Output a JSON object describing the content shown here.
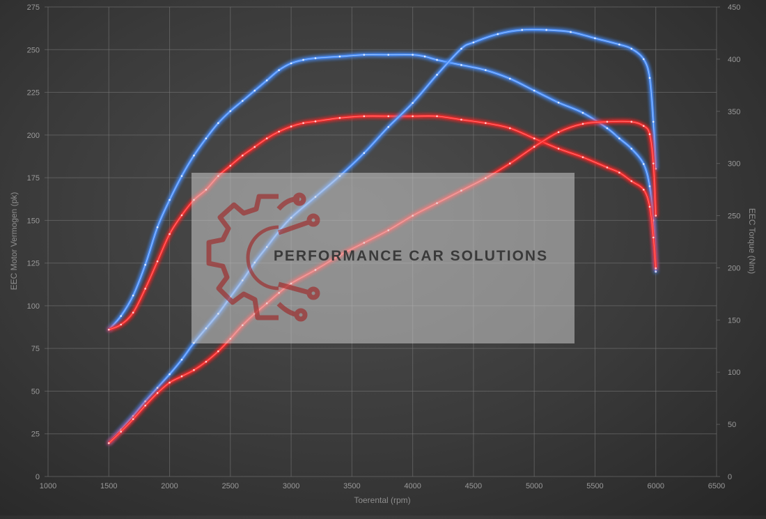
{
  "chart_data": {
    "type": "line",
    "xlabel": "Toerental (rpm)",
    "ylabel_left": "EEC Motor Vermogen (pk)",
    "ylabel_right": "EEC Torque (Nm)",
    "xlim": [
      1000,
      6500
    ],
    "ylim_left": [
      0,
      275
    ],
    "ylim_right": [
      0,
      450
    ],
    "x_ticks": [
      1000,
      1500,
      2000,
      2500,
      3000,
      3500,
      4000,
      4500,
      5000,
      5500,
      6000,
      6500
    ],
    "y_left_ticks": [
      0,
      25,
      50,
      75,
      100,
      125,
      150,
      175,
      200,
      225,
      250,
      275
    ],
    "y_right_ticks": [
      0,
      50,
      100,
      150,
      200,
      250,
      300,
      350,
      400,
      450
    ],
    "grid": true,
    "series": [
      {
        "axis": "left",
        "color": "#4a90ff",
        "values": [
          [
            1500,
            86
          ],
          [
            1600,
            94
          ],
          [
            1700,
            106
          ],
          [
            1800,
            124
          ],
          [
            1900,
            146
          ],
          [
            2000,
            162
          ],
          [
            2100,
            176
          ],
          [
            2200,
            188
          ],
          [
            2300,
            198
          ],
          [
            2400,
            207
          ],
          [
            2500,
            214
          ],
          [
            2600,
            220
          ],
          [
            2700,
            226
          ],
          [
            2800,
            232
          ],
          [
            2900,
            238
          ],
          [
            3000,
            242
          ],
          [
            3100,
            244
          ],
          [
            3200,
            245
          ],
          [
            3400,
            246
          ],
          [
            3600,
            247
          ],
          [
            3800,
            247
          ],
          [
            4000,
            247
          ],
          [
            4100,
            246
          ],
          [
            4200,
            244
          ],
          [
            4400,
            241
          ],
          [
            4600,
            238
          ],
          [
            4800,
            233
          ],
          [
            5000,
            226
          ],
          [
            5200,
            219
          ],
          [
            5400,
            213
          ],
          [
            5600,
            204
          ],
          [
            5700,
            198
          ],
          [
            5800,
            192
          ],
          [
            5900,
            183
          ],
          [
            5950,
            170
          ],
          [
            5980,
            150
          ],
          [
            6000,
            120
          ]
        ]
      },
      {
        "axis": "left",
        "color": "#ff2a2a",
        "values": [
          [
            1500,
            86
          ],
          [
            1600,
            89
          ],
          [
            1700,
            96
          ],
          [
            1800,
            110
          ],
          [
            1900,
            126
          ],
          [
            2000,
            142
          ],
          [
            2100,
            153
          ],
          [
            2200,
            162
          ],
          [
            2300,
            168
          ],
          [
            2400,
            176
          ],
          [
            2500,
            182
          ],
          [
            2600,
            188
          ],
          [
            2700,
            193
          ],
          [
            2800,
            198
          ],
          [
            2900,
            202
          ],
          [
            3000,
            205
          ],
          [
            3100,
            207
          ],
          [
            3200,
            208
          ],
          [
            3400,
            210
          ],
          [
            3600,
            211
          ],
          [
            3800,
            211
          ],
          [
            4000,
            211
          ],
          [
            4200,
            211
          ],
          [
            4400,
            209
          ],
          [
            4600,
            207
          ],
          [
            4800,
            204
          ],
          [
            5000,
            198
          ],
          [
            5200,
            192
          ],
          [
            5400,
            187
          ],
          [
            5600,
            181
          ],
          [
            5700,
            178
          ],
          [
            5800,
            173
          ],
          [
            5900,
            168
          ],
          [
            5950,
            158
          ],
          [
            5980,
            140
          ],
          [
            6000,
            122
          ]
        ]
      },
      {
        "axis": "right",
        "color": "#4a90ff",
        "values": [
          [
            1500,
            32
          ],
          [
            1600,
            45
          ],
          [
            1700,
            58
          ],
          [
            1800,
            72
          ],
          [
            1900,
            85
          ],
          [
            2000,
            98
          ],
          [
            2100,
            112
          ],
          [
            2200,
            128
          ],
          [
            2300,
            142
          ],
          [
            2400,
            156
          ],
          [
            2500,
            172
          ],
          [
            2600,
            188
          ],
          [
            2700,
            205
          ],
          [
            2800,
            220
          ],
          [
            2900,
            235
          ],
          [
            3000,
            248
          ],
          [
            3200,
            268
          ],
          [
            3400,
            288
          ],
          [
            3600,
            310
          ],
          [
            3800,
            335
          ],
          [
            4000,
            358
          ],
          [
            4200,
            385
          ],
          [
            4400,
            410
          ],
          [
            4500,
            416
          ],
          [
            4700,
            424
          ],
          [
            4900,
            428
          ],
          [
            5100,
            428
          ],
          [
            5300,
            426
          ],
          [
            5500,
            420
          ],
          [
            5700,
            414
          ],
          [
            5800,
            410
          ],
          [
            5900,
            400
          ],
          [
            5950,
            382
          ],
          [
            5980,
            340
          ],
          [
            6000,
            295
          ]
        ]
      },
      {
        "axis": "right",
        "color": "#ff2a2a",
        "values": [
          [
            1500,
            32
          ],
          [
            1600,
            43
          ],
          [
            1700,
            55
          ],
          [
            1800,
            68
          ],
          [
            1900,
            80
          ],
          [
            2000,
            90
          ],
          [
            2100,
            96
          ],
          [
            2200,
            102
          ],
          [
            2300,
            110
          ],
          [
            2400,
            120
          ],
          [
            2500,
            132
          ],
          [
            2600,
            145
          ],
          [
            2700,
            156
          ],
          [
            2800,
            166
          ],
          [
            2900,
            176
          ],
          [
            3000,
            185
          ],
          [
            3200,
            198
          ],
          [
            3400,
            212
          ],
          [
            3600,
            224
          ],
          [
            3800,
            236
          ],
          [
            4000,
            250
          ],
          [
            4200,
            262
          ],
          [
            4400,
            274
          ],
          [
            4600,
            286
          ],
          [
            4800,
            300
          ],
          [
            5000,
            316
          ],
          [
            5200,
            330
          ],
          [
            5400,
            338
          ],
          [
            5600,
            340
          ],
          [
            5800,
            340
          ],
          [
            5900,
            336
          ],
          [
            5950,
            328
          ],
          [
            5980,
            300
          ],
          [
            6000,
            250
          ]
        ]
      }
    ],
    "watermark": {
      "text": "PERFORMANCE CAR SOLUTIONS",
      "logo": "gear-circuit-logo"
    }
  }
}
